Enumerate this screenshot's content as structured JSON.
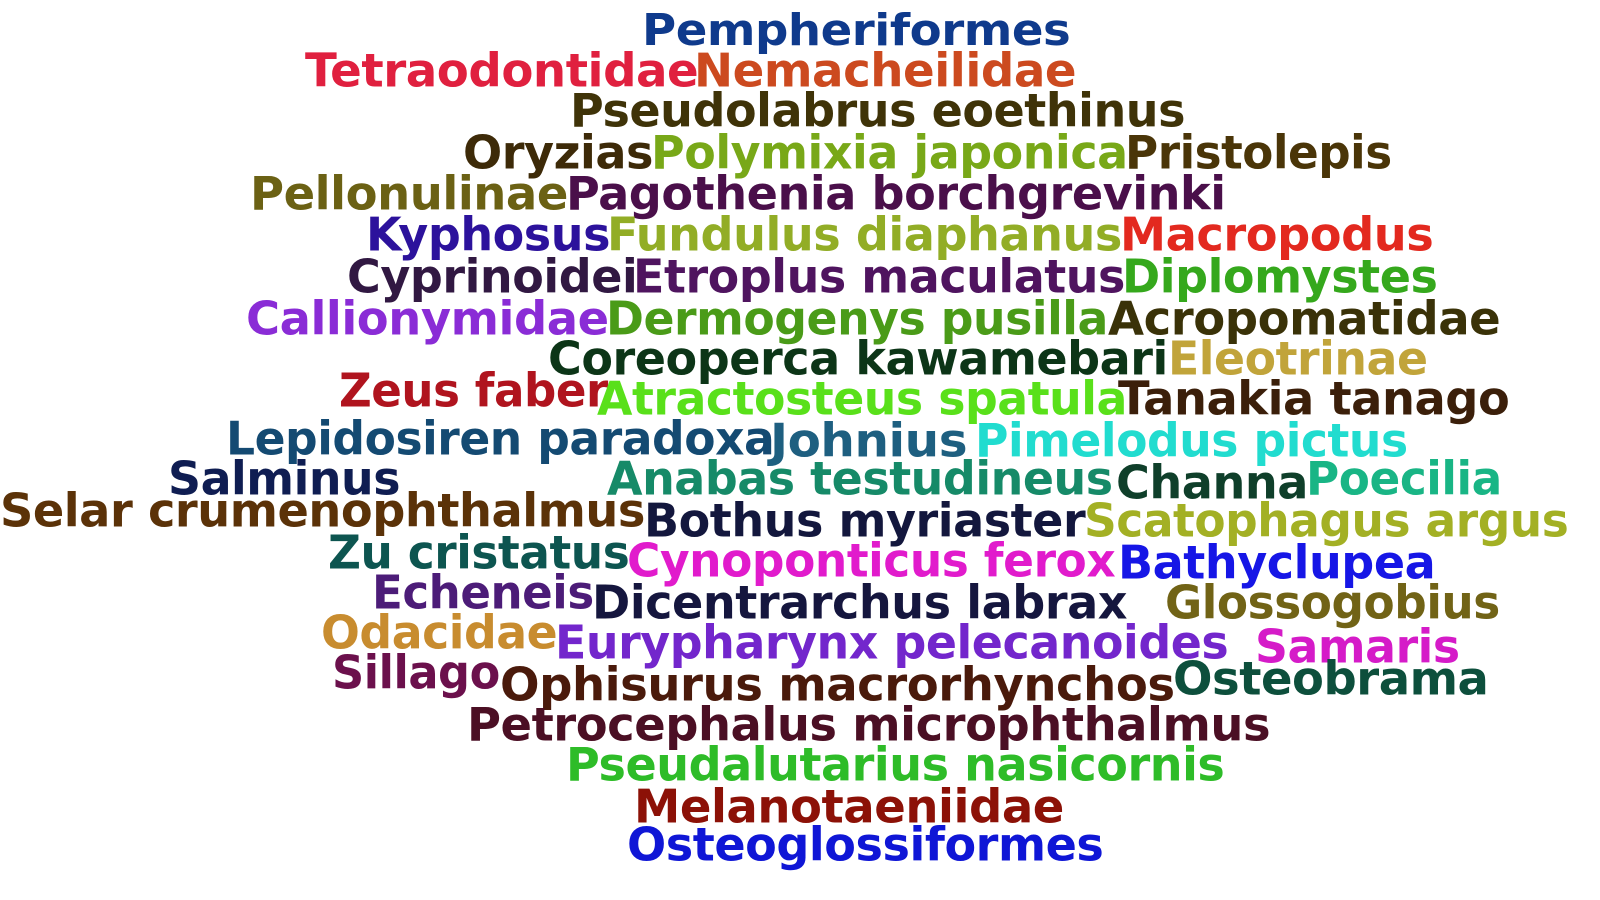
{
  "word_cloud": {
    "words": [
      {
        "text": "Pempheriformes",
        "color": "#0f3a8c"
      },
      {
        "text": "Tetraodontidae",
        "color": "#e0203f"
      },
      {
        "text": "Nemacheilidae",
        "color": "#cc4a1f"
      },
      {
        "text": "Pseudolabrus eoethinus",
        "color": "#3f3308"
      },
      {
        "text": "Oryzias",
        "color": "#3d2a08"
      },
      {
        "text": "Polymixia japonica",
        "color": "#78a818"
      },
      {
        "text": "Pristolepis",
        "color": "#4a3508"
      },
      {
        "text": "Pellonulinae",
        "color": "#6b6114"
      },
      {
        "text": "Pagothenia borchgrevinki",
        "color": "#4a0f4a"
      },
      {
        "text": "Kyphosus",
        "color": "#2c129c"
      },
      {
        "text": "Fundulus diaphanus",
        "color": "#92ad26"
      },
      {
        "text": "Macropodus",
        "color": "#e3291f"
      },
      {
        "text": "Cyprinoidei",
        "color": "#311842"
      },
      {
        "text": "Etroplus maculatus",
        "color": "#4f145f"
      },
      {
        "text": "Diplomystes",
        "color": "#35a81c"
      },
      {
        "text": "Callionymidae",
        "color": "#8a2cd6"
      },
      {
        "text": "Dermogenys pusilla",
        "color": "#4a9b18"
      },
      {
        "text": "Acropomatidae",
        "color": "#3a3208"
      },
      {
        "text": "Coreoperca kawamebari",
        "color": "#0c3517"
      },
      {
        "text": "Eleotrinae",
        "color": "#c1a43a"
      },
      {
        "text": "Zeus faber",
        "color": "#b0141e"
      },
      {
        "text": "Atractosteus spatula",
        "color": "#59e01a"
      },
      {
        "text": "Tanakia tanago",
        "color": "#3b1f0a"
      },
      {
        "text": "Lepidosiren paradoxa",
        "color": "#144a72"
      },
      {
        "text": "Johnius",
        "color": "#1e5f80"
      },
      {
        "text": "Pimelodus pictus",
        "color": "#21dccf"
      },
      {
        "text": "Salminus",
        "color": "#0f1d52"
      },
      {
        "text": "Anabas testudineus",
        "color": "#168a68"
      },
      {
        "text": "Channa",
        "color": "#0f3f2a"
      },
      {
        "text": "Poecilia",
        "color": "#19b585"
      },
      {
        "text": "Selar crumenophthalmus",
        "color": "#5b3208"
      },
      {
        "text": "Bothus myriaster",
        "color": "#13173d"
      },
      {
        "text": "Scatophagus argus",
        "color": "#a3b024"
      },
      {
        "text": "Zu cristatus",
        "color": "#0d5550"
      },
      {
        "text": "Cynoponticus ferox",
        "color": "#e11bcc"
      },
      {
        "text": "Bathyclupea",
        "color": "#1616e6"
      },
      {
        "text": "Echeneis",
        "color": "#4c1c78"
      },
      {
        "text": "Dicentrarchus labrax",
        "color": "#15163e"
      },
      {
        "text": "Glossogobius",
        "color": "#716316"
      },
      {
        "text": "Odacidae",
        "color": "#c88c2f"
      },
      {
        "text": "Eurypharynx pelecanoides",
        "color": "#7326cc"
      },
      {
        "text": "Samaris",
        "color": "#d51bc8"
      },
      {
        "text": "Sillago",
        "color": "#6b104c"
      },
      {
        "text": "Ophisurus macrorhynchos",
        "color": "#4a1a0b"
      },
      {
        "text": "Osteobrama",
        "color": "#0d4f3c"
      },
      {
        "text": "Petrocephalus microphthalmus",
        "color": "#4b0f24"
      },
      {
        "text": "Pseudalutarius nasicornis",
        "color": "#2ebc28"
      },
      {
        "text": "Melanotaeniidae",
        "color": "#8c1107"
      },
      {
        "text": "Osteoglossiformes",
        "color": "#0f16d6"
      }
    ]
  }
}
